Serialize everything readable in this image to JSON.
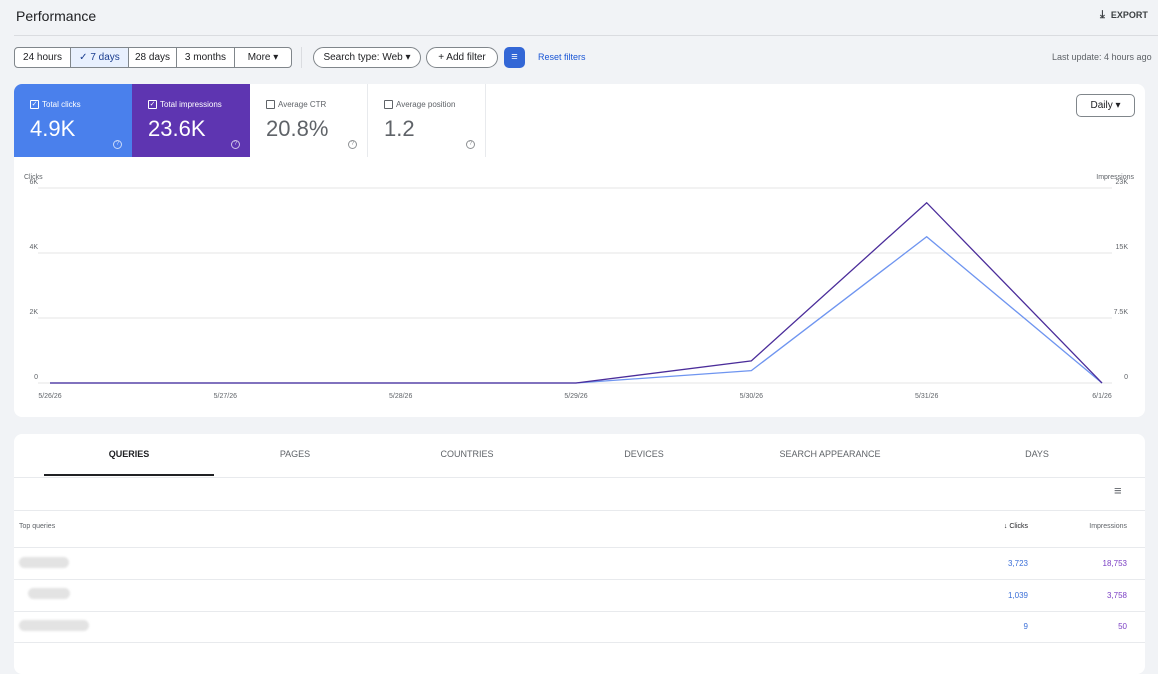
{
  "header": {
    "title": "Performance",
    "export": "EXPORT"
  },
  "filters": {
    "ranges": [
      "24 hours",
      "7 days",
      "28 days",
      "3 months",
      "More"
    ],
    "search_type": "Search type: Web",
    "add_filter": "Add filter",
    "reset": "Reset filters",
    "last_update": "Last update: 4 hours ago"
  },
  "metrics": [
    {
      "label": "Total clicks",
      "value": "4.9K"
    },
    {
      "label": "Total impressions",
      "value": "23.6K"
    },
    {
      "label": "Average CTR",
      "value": "20.8%"
    },
    {
      "label": "Average position",
      "value": "1.2"
    }
  ],
  "granularity": "Daily",
  "chart_data": {
    "type": "line",
    "ylabel": "Clicks",
    "y2label": "Impressions",
    "x": [
      "5/26/26",
      "5/27/26",
      "5/28/26",
      "5/29/26",
      "5/30/26",
      "5/31/26",
      "6/1/26"
    ],
    "series": [
      {
        "color": "#6f95f0",
        "values": [
          0,
          0,
          0,
          0,
          380,
          4500,
          0
        ]
      },
      {
        "color": "#4b2d9a",
        "values": [
          0,
          0,
          0,
          0,
          2550,
          20800,
          0
        ],
        "axis": "y2"
      }
    ],
    "ylim": [
      0,
      6000
    ],
    "yticks": [
      0,
      {
        "value": 2000,
        "label": "2K"
      },
      {
        "value": 4000,
        "label": "4K"
      },
      {
        "value": 6000,
        "label": "6K"
      }
    ],
    "y2lim": [
      0,
      22500
    ],
    "y2ticks": [
      0,
      {
        "value": 7500,
        "label": "7.5K"
      },
      {
        "value": 15000,
        "label": "15K"
      },
      {
        "value": 22500,
        "label": "23K"
      }
    ],
    "grid": true
  },
  "table": {
    "tabs": [
      "QUERIES",
      "PAGES",
      "COUNTRIES",
      "DEVICES",
      "SEARCH APPEARANCE",
      "DAYS"
    ],
    "columns": [
      "Top queries",
      "Clicks",
      "Impressions"
    ],
    "rows": [
      [
        "3,723",
        "18,753"
      ],
      [
        "1,039",
        "3,758"
      ],
      [
        "9",
        "50"
      ]
    ]
  }
}
